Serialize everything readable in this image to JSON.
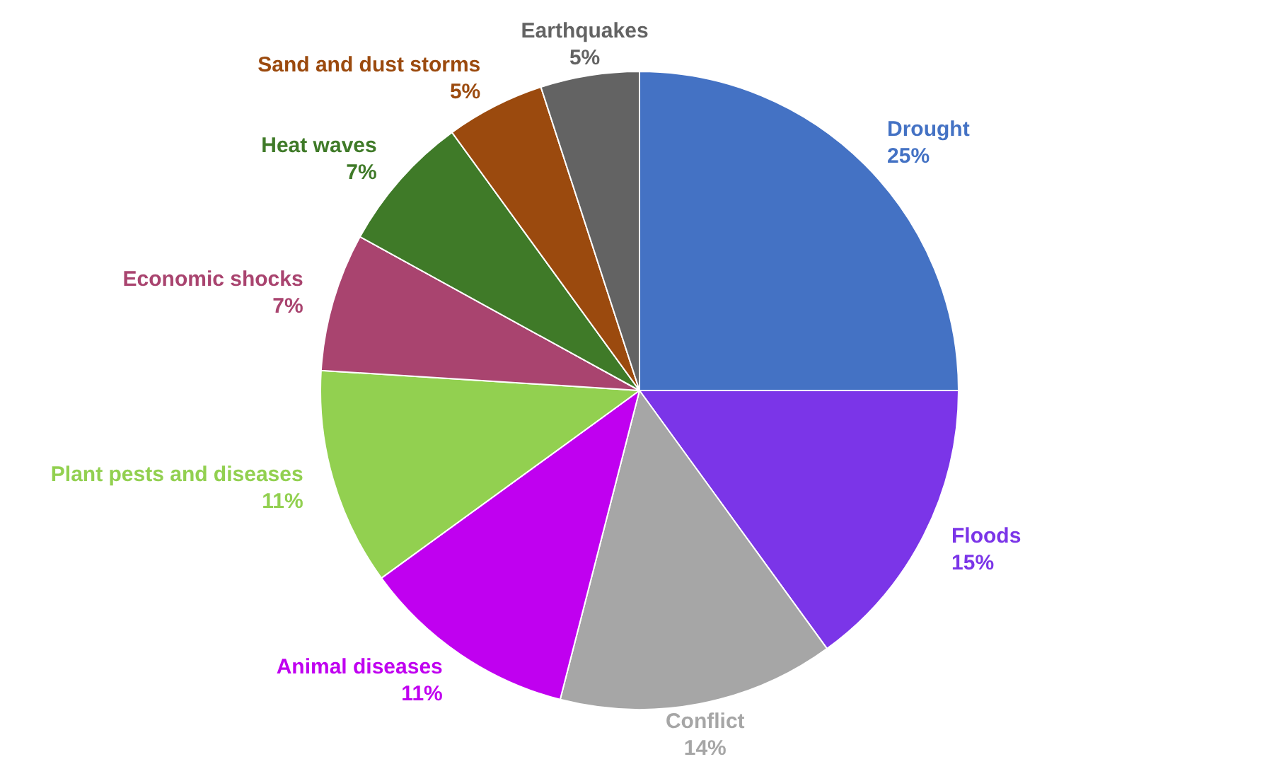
{
  "chart_data": {
    "type": "pie",
    "categories": [
      "Drought",
      "Floods",
      "Conflict",
      "Animal diseases",
      "Plant pests and diseases",
      "Economic shocks",
      "Heat waves",
      "Sand and dust storms",
      "Earthquakes"
    ],
    "values": [
      25,
      15,
      14,
      11,
      11,
      7,
      7,
      5,
      5
    ],
    "value_labels": [
      "25%",
      "15%",
      "14%",
      "11%",
      "11%",
      "7%",
      "7%",
      "5%",
      "5%"
    ],
    "colors": [
      "#4472c4",
      "#7b35e8",
      "#a6a6a6",
      "#c000f0",
      "#92d050",
      "#a9446f",
      "#3f7a28",
      "#9b4a0e",
      "#636363"
    ],
    "legend": false
  }
}
